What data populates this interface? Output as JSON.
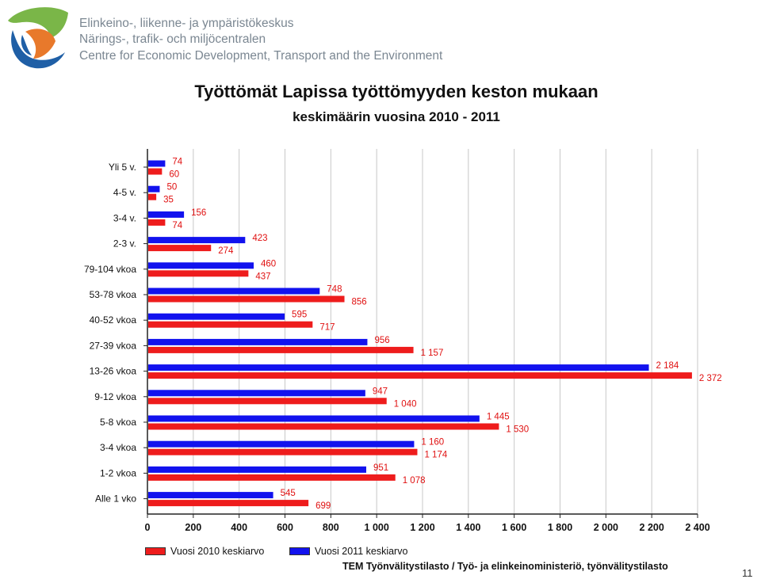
{
  "header": {
    "org_fi": "Elinkeino-, liikenne- ja ympäristökeskus",
    "org_sv": "Närings-, trafik- och miljöcentralen",
    "org_en": "Centre for Economic Development, Transport and the Environment"
  },
  "colors": {
    "logo_green": "#7ab648",
    "logo_orange": "#e8792b",
    "logo_blue": "#1f5fa6",
    "series_2010": "#ee1c1c",
    "series_2011": "#1212ee"
  },
  "chart_data": {
    "type": "bar",
    "orientation": "horizontal",
    "title": "Työttömät Lapissa työttömyyden keston mukaan",
    "subtitle": "keskimäärin vuosina 2010 - 2011",
    "categories": [
      "Yli 5 v.",
      "4-5 v.",
      "3-4 v.",
      "2-3 v.",
      "79-104 vkoa",
      "53-78 vkoa",
      "40-52 vkoa",
      "27-39 vkoa",
      "13-26 vkoa",
      "9-12 vkoa",
      "5-8 vkoa",
      "3-4 vkoa",
      "1-2 vkoa",
      "Alle 1 vko"
    ],
    "series": [
      {
        "name": "Vuosi 2011 keskiarvo",
        "values": [
          74,
          50,
          156,
          423,
          460,
          748,
          595,
          956,
          2184,
          947,
          1445,
          1160,
          951,
          545
        ],
        "labels": [
          "74",
          "50",
          "156",
          "423",
          "460",
          "748",
          "595",
          "956",
          "2 184",
          "947",
          "1 445",
          "1 160",
          "951",
          "545"
        ]
      },
      {
        "name": "Vuosi 2010 keskiarvo",
        "values": [
          60,
          35,
          74,
          274,
          437,
          856,
          717,
          1157,
          2372,
          1040,
          1530,
          1174,
          1078,
          699
        ],
        "labels": [
          "60",
          "35",
          "74",
          "274",
          "437",
          "856",
          "717",
          "1 157",
          "2 372",
          "1 040",
          "1 530",
          "1 174",
          "1 078",
          "699"
        ]
      }
    ],
    "xlim": [
      0,
      2400
    ],
    "x_ticks": [
      0,
      200,
      400,
      600,
      800,
      1000,
      1200,
      1400,
      1600,
      1800,
      2000,
      2200,
      2400
    ],
    "x_tick_labels": [
      "0",
      "200",
      "400",
      "600",
      "800",
      "1 000",
      "1 200",
      "1 400",
      "1 600",
      "1 800",
      "2 000",
      "2 200",
      "2 400"
    ],
    "grid": true,
    "legend_position": "bottom-left",
    "legend": [
      "Vuosi 2010 keskiarvo",
      "Vuosi 2011 keskiarvo"
    ]
  },
  "source": "TEM Työnvälitystilasto / Työ- ja elinkeinoministeriö, työnvälitystilasto",
  "page_number": "11"
}
